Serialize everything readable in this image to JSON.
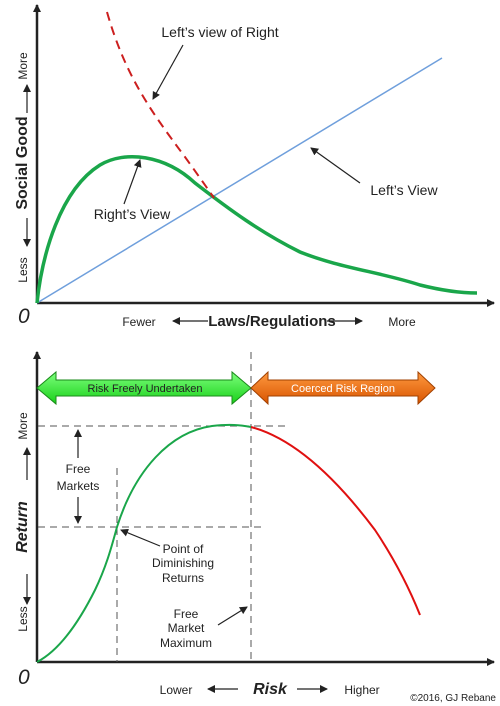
{
  "top_chart": {
    "origin_label": "0",
    "y_axis": {
      "title": "Social Good",
      "more": "More",
      "less": "Less"
    },
    "x_axis": {
      "title": "Laws/Regulations",
      "fewer": "Fewer",
      "more": "More"
    },
    "annotations": {
      "lefts_view_of_right": "Left’s view of Right",
      "lefts_view": "Left’s View",
      "rights_view": "Right’s View"
    },
    "colors": {
      "rights_view": "#1aa64a",
      "lefts_view": "#6f9fdc",
      "lefts_view_of_right": "#cc1f1f"
    }
  },
  "bottom_chart": {
    "origin_label": "0",
    "y_axis": {
      "title": "Return",
      "more": "More",
      "less": "Less"
    },
    "x_axis": {
      "title": "Risk",
      "lower": "Lower",
      "higher": "Higher"
    },
    "regions": {
      "free": "Risk Freely Undertaken",
      "coerced": "Coerced Risk Region"
    },
    "annotations": {
      "free_markets_1": "Free",
      "free_markets_2": "Markets",
      "diminishing_1": "Point of",
      "diminishing_2": "Diminishing",
      "diminishing_3": "Returns",
      "maximum_1": "Free",
      "maximum_2": "Market",
      "maximum_3": "Maximum"
    },
    "colors": {
      "free_arrow": "#33ee33",
      "coerced_arrow": "#ee6a10",
      "curve_green": "#1aa64a",
      "curve_red": "#e01010"
    }
  },
  "copyright": "©2016, GJ Rebane"
}
